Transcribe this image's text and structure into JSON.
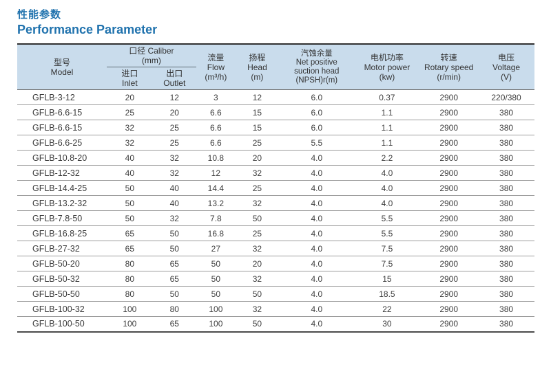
{
  "page": {
    "title_zh": "性能参数",
    "title_en": "Performance Parameter",
    "accent_color": "#2173ae",
    "header_bg": "#c9dcec"
  },
  "table": {
    "headers": {
      "model": {
        "zh": "型号",
        "en": "Model"
      },
      "caliber": {
        "zh": "口径 Caliber",
        "unit": "(mm)"
      },
      "inlet": {
        "zh": "进口",
        "en": "Inlet"
      },
      "outlet": {
        "zh": "出口",
        "en": "Outlet"
      },
      "flow": {
        "zh": "流量",
        "en": "Flow",
        "unit": "(m³/h)"
      },
      "head": {
        "zh": "扬程",
        "en": "Head",
        "unit": "(m)"
      },
      "npsh": {
        "zh": "汽蚀余量",
        "en1": "Net positive",
        "en2": "suction head",
        "unit": "(NPSH)r(m)"
      },
      "motor": {
        "zh": "电机功率",
        "en": "Motor power",
        "unit": "(kw)"
      },
      "speed": {
        "zh": "转速",
        "en": "Rotary speed",
        "unit": "(r/min)"
      },
      "voltage": {
        "zh": "电压",
        "en": "Voltage",
        "unit": "(V)"
      }
    },
    "rows": [
      [
        "GFLB-3-12",
        "20",
        "12",
        "3",
        "12",
        "6.0",
        "0.37",
        "2900",
        "220/380"
      ],
      [
        "GFLB-6.6-15",
        "25",
        "20",
        "6.6",
        "15",
        "6.0",
        "1.1",
        "2900",
        "380"
      ],
      [
        "GFLB-6.6-15",
        "32",
        "25",
        "6.6",
        "15",
        "6.0",
        "1.1",
        "2900",
        "380"
      ],
      [
        "GFLB-6.6-25",
        "32",
        "25",
        "6.6",
        "25",
        "5.5",
        "1.1",
        "2900",
        "380"
      ],
      [
        "GFLB-10.8-20",
        "40",
        "32",
        "10.8",
        "20",
        "4.0",
        "2.2",
        "2900",
        "380"
      ],
      [
        "GFLB-12-32",
        "40",
        "32",
        "12",
        "32",
        "4.0",
        "4.0",
        "2900",
        "380"
      ],
      [
        "GFLB-14.4-25",
        "50",
        "40",
        "14.4",
        "25",
        "4.0",
        "4.0",
        "2900",
        "380"
      ],
      [
        "GFLB-13.2-32",
        "50",
        "40",
        "13.2",
        "32",
        "4.0",
        "4.0",
        "2900",
        "380"
      ],
      [
        "GFLB-7.8-50",
        "50",
        "32",
        "7.8",
        "50",
        "4.0",
        "5.5",
        "2900",
        "380"
      ],
      [
        "GFLB-16.8-25",
        "65",
        "50",
        "16.8",
        "25",
        "4.0",
        "5.5",
        "2900",
        "380"
      ],
      [
        "GFLB-27-32",
        "65",
        "50",
        "27",
        "32",
        "4.0",
        "7.5",
        "2900",
        "380"
      ],
      [
        "GFLB-50-20",
        "80",
        "65",
        "50",
        "20",
        "4.0",
        "7.5",
        "2900",
        "380"
      ],
      [
        "GFLB-50-32",
        "80",
        "65",
        "50",
        "32",
        "4.0",
        "15",
        "2900",
        "380"
      ],
      [
        "GFLB-50-50",
        "80",
        "50",
        "50",
        "50",
        "4.0",
        "18.5",
        "2900",
        "380"
      ],
      [
        "GFLB-100-32",
        "100",
        "80",
        "100",
        "32",
        "4.0",
        "22",
        "2900",
        "380"
      ],
      [
        "GFLB-100-50",
        "100",
        "65",
        "100",
        "50",
        "4.0",
        "30",
        "2900",
        "380"
      ]
    ]
  }
}
